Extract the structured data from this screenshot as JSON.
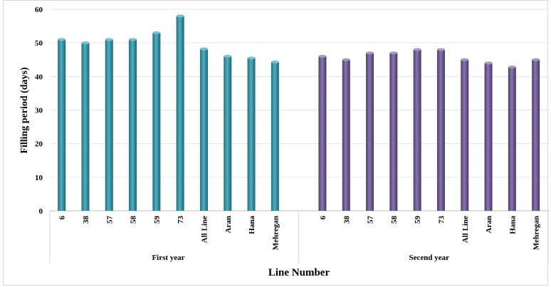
{
  "chart_data": {
    "type": "bar",
    "title": "",
    "ylabel": "Filling period (days)",
    "xlabel": "Line Number",
    "ylim": [
      0,
      60
    ],
    "yticks": [
      0,
      10,
      20,
      30,
      40,
      50,
      60
    ],
    "grid": true,
    "legend": "none",
    "groups": [
      {
        "name": "First year",
        "color": "#2e8ea0",
        "categories": [
          "6",
          "38",
          "57",
          "58",
          "59",
          "73",
          "All Line",
          "Aran",
          "Hana",
          "Mehregan"
        ],
        "values": [
          51,
          50,
          51,
          51,
          53,
          58,
          48.2,
          46,
          45.5,
          44.3
        ]
      },
      {
        "name": "Secend year",
        "color": "#6a5590",
        "categories": [
          "6",
          "38",
          "57",
          "58",
          "59",
          "73",
          "All Line",
          "Aran",
          "Hana",
          "Mehregan"
        ],
        "values": [
          46,
          45,
          47,
          47,
          48,
          48,
          45,
          44,
          42.8,
          45
        ]
      }
    ]
  }
}
